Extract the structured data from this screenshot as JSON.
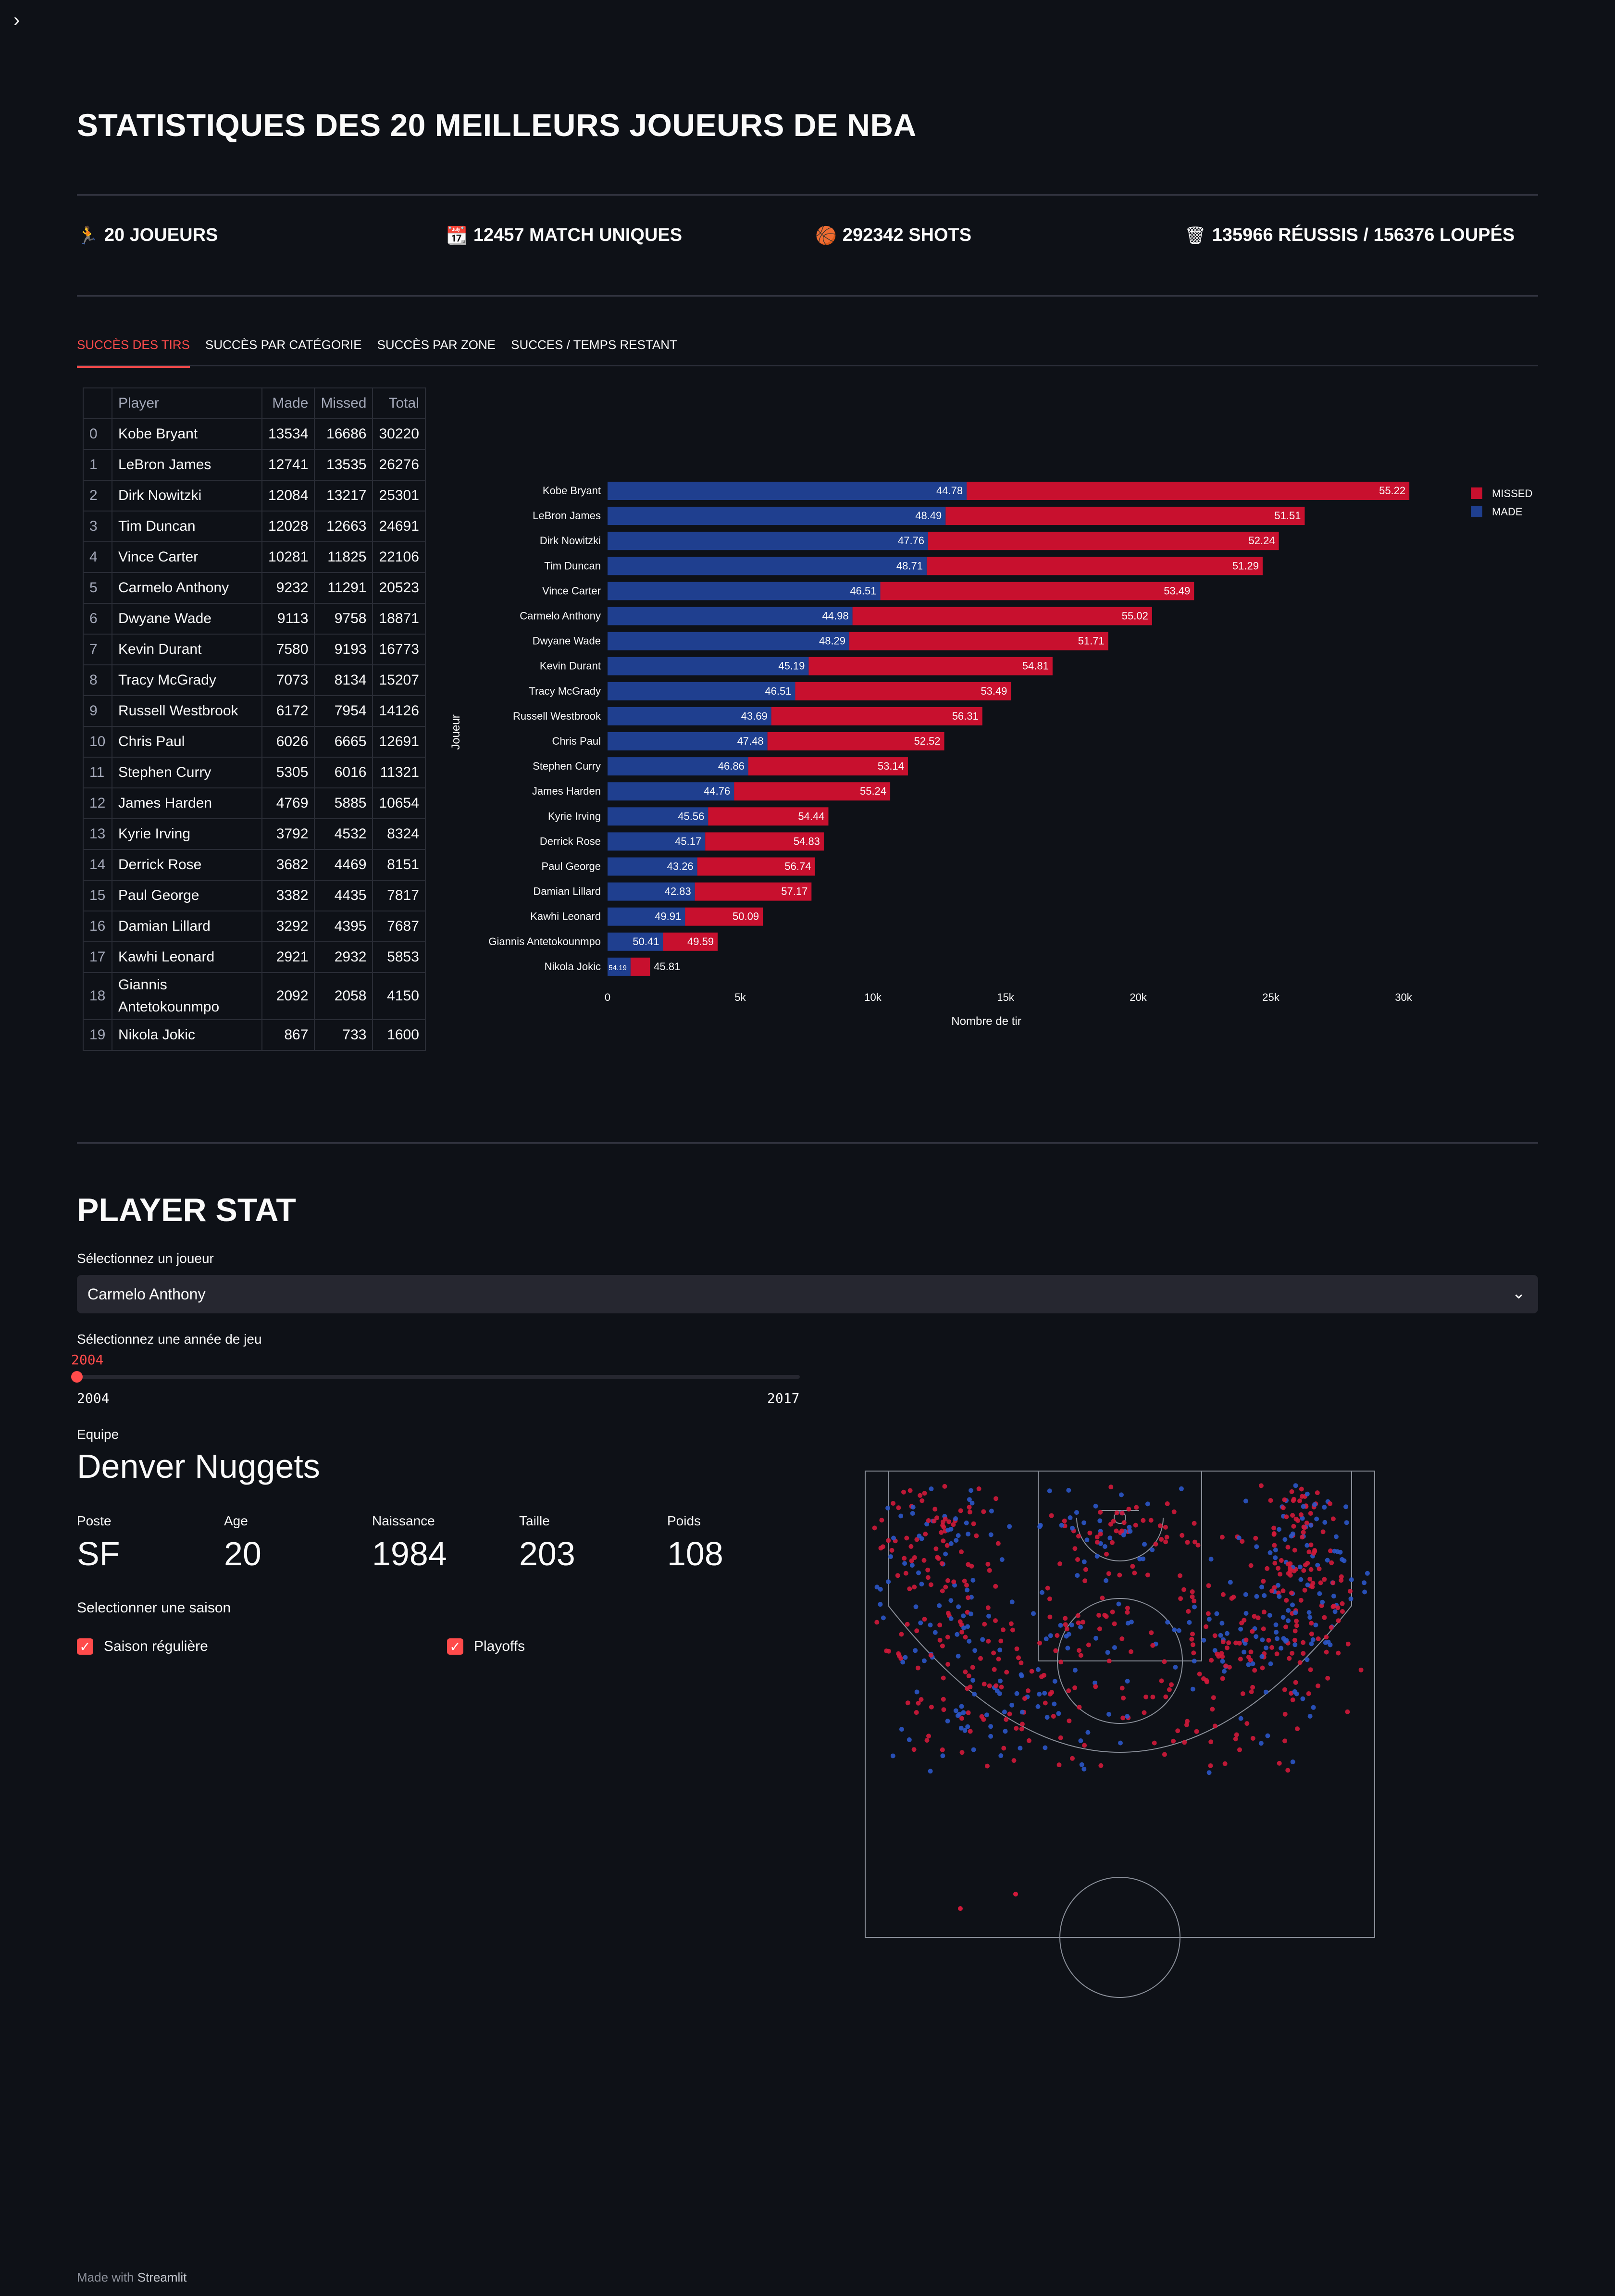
{
  "sidebar_toggle": "›",
  "header": {
    "title": "STATISTIQUES DES 20 MEILLEURS JOUEURS DE NBA"
  },
  "metrics": [
    {
      "icon": "🏃",
      "icon_name": "player-icon",
      "text": "20 JOUEURS"
    },
    {
      "icon": "📆",
      "icon_name": "calendar-icon",
      "text": "12457 MATCH UNIQUES"
    },
    {
      "icon": "🏀",
      "icon_name": "basketball-icon",
      "text": "292342 SHOTS"
    },
    {
      "icon": "🗑",
      "icon_name": "basket-icon",
      "text": "135966 RÉUSSIS / 156376 LOUPÉS"
    }
  ],
  "tabs": [
    {
      "label": "SUCCÈS DES TIRS",
      "active": true
    },
    {
      "label": "SUCCÈS PAR CATÉGORIE",
      "active": false
    },
    {
      "label": "SUCCÈS PAR ZONE",
      "active": false
    },
    {
      "label": "SUCCES / TEMPS RESTANT",
      "active": false
    }
  ],
  "table": {
    "columns": [
      "Player",
      "Made",
      "Missed",
      "Total"
    ],
    "rows": [
      {
        "idx": "0",
        "player": "Kobe Bryant",
        "made": "13534",
        "missed": "16686",
        "total": "30220"
      },
      {
        "idx": "1",
        "player": "LeBron James",
        "made": "12741",
        "missed": "13535",
        "total": "26276"
      },
      {
        "idx": "2",
        "player": "Dirk Nowitzki",
        "made": "12084",
        "missed": "13217",
        "total": "25301"
      },
      {
        "idx": "3",
        "player": "Tim Duncan",
        "made": "12028",
        "missed": "12663",
        "total": "24691"
      },
      {
        "idx": "4",
        "player": "Vince Carter",
        "made": "10281",
        "missed": "11825",
        "total": "22106"
      },
      {
        "idx": "5",
        "player": "Carmelo Anthony",
        "made": "9232",
        "missed": "11291",
        "total": "20523"
      },
      {
        "idx": "6",
        "player": "Dwyane Wade",
        "made": "9113",
        "missed": "9758",
        "total": "18871"
      },
      {
        "idx": "7",
        "player": "Kevin Durant",
        "made": "7580",
        "missed": "9193",
        "total": "16773"
      },
      {
        "idx": "8",
        "player": "Tracy McGrady",
        "made": "7073",
        "missed": "8134",
        "total": "15207"
      },
      {
        "idx": "9",
        "player": "Russell Westbrook",
        "made": "6172",
        "missed": "7954",
        "total": "14126"
      },
      {
        "idx": "10",
        "player": "Chris Paul",
        "made": "6026",
        "missed": "6665",
        "total": "12691"
      },
      {
        "idx": "11",
        "player": "Stephen Curry",
        "made": "5305",
        "missed": "6016",
        "total": "11321"
      },
      {
        "idx": "12",
        "player": "James Harden",
        "made": "4769",
        "missed": "5885",
        "total": "10654"
      },
      {
        "idx": "13",
        "player": "Kyrie Irving",
        "made": "3792",
        "missed": "4532",
        "total": "8324"
      },
      {
        "idx": "14",
        "player": "Derrick Rose",
        "made": "3682",
        "missed": "4469",
        "total": "8151"
      },
      {
        "idx": "15",
        "player": "Paul George",
        "made": "3382",
        "missed": "4435",
        "total": "7817"
      },
      {
        "idx": "16",
        "player": "Damian Lillard",
        "made": "3292",
        "missed": "4395",
        "total": "7687"
      },
      {
        "idx": "17",
        "player": "Kawhi Leonard",
        "made": "2921",
        "missed": "2932",
        "total": "5853"
      },
      {
        "idx": "18",
        "player": "Giannis Antetokounmpo",
        "made": "2092",
        "missed": "2058",
        "total": "4150"
      },
      {
        "idx": "19",
        "player": "Nikola Jokic",
        "made": "867",
        "missed": "733",
        "total": "1600"
      }
    ]
  },
  "chart_data": {
    "type": "bar",
    "orientation": "horizontal",
    "stacked": true,
    "xlabel": "Nombre de tir",
    "ylabel": "Joueur",
    "xlim": [
      0,
      30000
    ],
    "xticks": [
      0,
      5000,
      10000,
      15000,
      20000,
      25000,
      30000
    ],
    "xtick_labels": [
      "0",
      "5k",
      "10k",
      "15k",
      "20k",
      "25k",
      "30k"
    ],
    "legend_position": "top-right",
    "categories": [
      "Kobe Bryant",
      "LeBron James",
      "Dirk Nowitzki",
      "Tim Duncan",
      "Vince Carter",
      "Carmelo Anthony",
      "Dwyane Wade",
      "Kevin Durant",
      "Tracy McGrady",
      "Russell Westbrook",
      "Chris Paul",
      "Stephen Curry",
      "James Harden",
      "Kyrie Irving",
      "Derrick Rose",
      "Paul George",
      "Damian Lillard",
      "Kawhi Leonard",
      "Giannis Antetokounmpo",
      "Nikola Jokic"
    ],
    "series": [
      {
        "name": "MADE",
        "color": "#1f3f8f",
        "values": [
          13534,
          12741,
          12084,
          12028,
          10281,
          9232,
          9113,
          7580,
          7073,
          6172,
          6026,
          5305,
          4769,
          3792,
          3682,
          3382,
          3292,
          2921,
          2092,
          867
        ],
        "labels": [
          "44.78",
          "48.49",
          "47.76",
          "48.71",
          "46.51",
          "44.98",
          "48.29",
          "45.19",
          "46.51",
          "43.69",
          "47.48",
          "46.86",
          "44.76",
          "45.56",
          "45.17",
          "43.26",
          "42.83",
          "49.91",
          "50.41",
          "54.19"
        ]
      },
      {
        "name": "MISSED",
        "color": "#c8102e",
        "values": [
          16686,
          13535,
          13217,
          12663,
          11825,
          11291,
          9758,
          9193,
          8134,
          7954,
          6665,
          6016,
          5885,
          4532,
          4469,
          4435,
          4395,
          2932,
          2058,
          733
        ],
        "labels": [
          "55.22",
          "51.51",
          "52.24",
          "51.29",
          "53.49",
          "55.02",
          "51.71",
          "54.81",
          "53.49",
          "56.31",
          "52.52",
          "53.14",
          "55.24",
          "54.44",
          "54.83",
          "56.74",
          "57.17",
          "50.09",
          "49.59",
          "45.81"
        ]
      }
    ],
    "legend_order": [
      "MISSED",
      "MADE"
    ]
  },
  "player": {
    "section_title": "PLAYER STAT",
    "select_label": "Sélectionnez un joueur",
    "selected_player": "Carmelo Anthony",
    "year_label": "Sélectionnez une année de jeu",
    "year_value": "2004",
    "year_min": "2004",
    "year_max": "2017",
    "team_label": "Equipe",
    "team": "Denver Nuggets",
    "stats": [
      {
        "label": "Poste",
        "value": "SF"
      },
      {
        "label": "Age",
        "value": "20"
      },
      {
        "label": "Naissance",
        "value": "1984"
      },
      {
        "label": "Taille",
        "value": "203"
      },
      {
        "label": "Poids",
        "value": "108"
      }
    ],
    "season_label": "Selectionner une saison",
    "seasons": [
      {
        "label": "Saison régulière",
        "checked": true
      },
      {
        "label": "Playoffs",
        "checked": true
      }
    ]
  },
  "shot_chart": {
    "made_color": "#2b56c8",
    "missed_color": "#d1193a"
  },
  "footer": {
    "prefix": "Made with",
    "brand": "Streamlit"
  }
}
